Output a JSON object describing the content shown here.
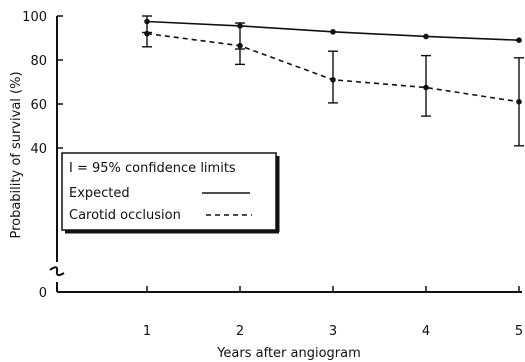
{
  "chart_data": {
    "type": "line",
    "xlabel": "Years after angiogram",
    "ylabel": "Probability of survival  (%)",
    "x": [
      1,
      2,
      3,
      4,
      5
    ],
    "x_ticks": [
      "1",
      "2",
      "3",
      "4",
      "5"
    ],
    "y_ticks": [
      "0",
      "40",
      "60",
      "80",
      "100"
    ],
    "ylim": [
      0,
      100
    ],
    "y_axis_break": true,
    "grid": false,
    "legend_position": "left",
    "legend": {
      "ci_label": "I = 95% confidence limits",
      "entries": [
        {
          "label": "Expected",
          "style": "solid"
        },
        {
          "label": "Carotid occlusion",
          "style": "dashed"
        }
      ]
    },
    "series": [
      {
        "name": "Expected",
        "style": "solid",
        "values": [
          97.5,
          95.5,
          92.8,
          90.7,
          89.0
        ],
        "ci_lower": [
          92.5,
          85.0,
          null,
          null,
          null
        ],
        "ci_upper": [
          100.0,
          96.8,
          null,
          null,
          null
        ]
      },
      {
        "name": "Carotid occlusion",
        "style": "dashed",
        "values": [
          92.0,
          86.5,
          71.0,
          67.5,
          61.0
        ],
        "ci_lower": [
          86.0,
          78.0,
          60.5,
          54.5,
          41.0
        ],
        "ci_upper": [
          null,
          null,
          84.0,
          82.0,
          81.0
        ]
      }
    ],
    "colors": {
      "line": "#111111",
      "background": "#ffffff"
    }
  }
}
